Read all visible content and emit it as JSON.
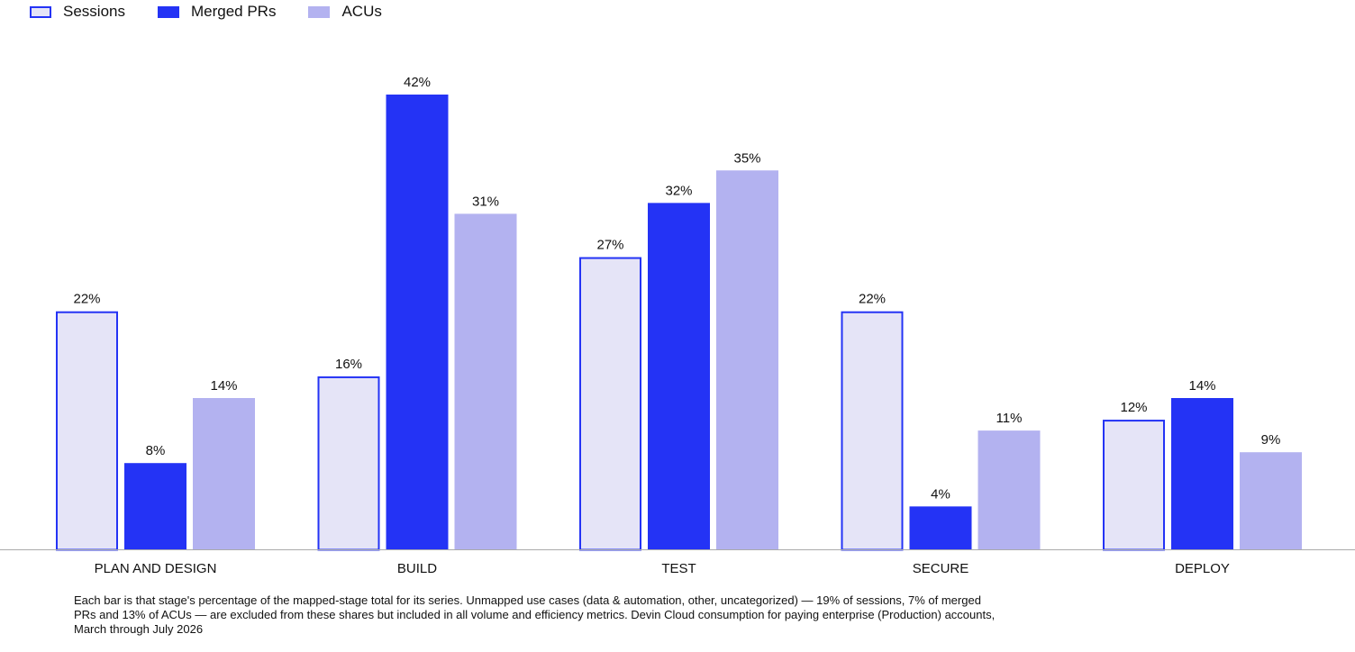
{
  "colors": {
    "sessions_fill": "#e5e4f7",
    "sessions_stroke": "#2433f5",
    "merged_fill": "#2433f5",
    "acus_fill": "#b3b2f0",
    "axis": "#aaaaaa",
    "text": "#111111"
  },
  "chart_data": {
    "type": "bar",
    "categories": [
      "PLAN AND DESIGN",
      "BUILD",
      "TEST",
      "SECURE",
      "DEPLOY"
    ],
    "series": [
      {
        "name": "Sessions",
        "values": [
          22,
          16,
          27,
          22,
          12
        ]
      },
      {
        "name": "Merged PRs",
        "values": [
          8,
          42,
          32,
          4,
          14
        ]
      },
      {
        "name": "ACUs",
        "values": [
          14,
          31,
          35,
          11,
          9
        ]
      }
    ],
    "value_suffix": "%",
    "ylim": [
      0,
      42
    ],
    "legend_position": "top-left",
    "grid": false,
    "title": "",
    "xlabel": "",
    "ylabel": ""
  },
  "footnote": "Each bar is that stage's percentage of the mapped-stage total for its series. Unmapped use cases (data & automation, other, uncategorized) — 19% of sessions, 7% of merged PRs and 13% of ACUs — are excluded from these shares but included in all volume and efficiency metrics. Devin Cloud consumption for paying enterprise (Production) accounts, March through July 2026"
}
